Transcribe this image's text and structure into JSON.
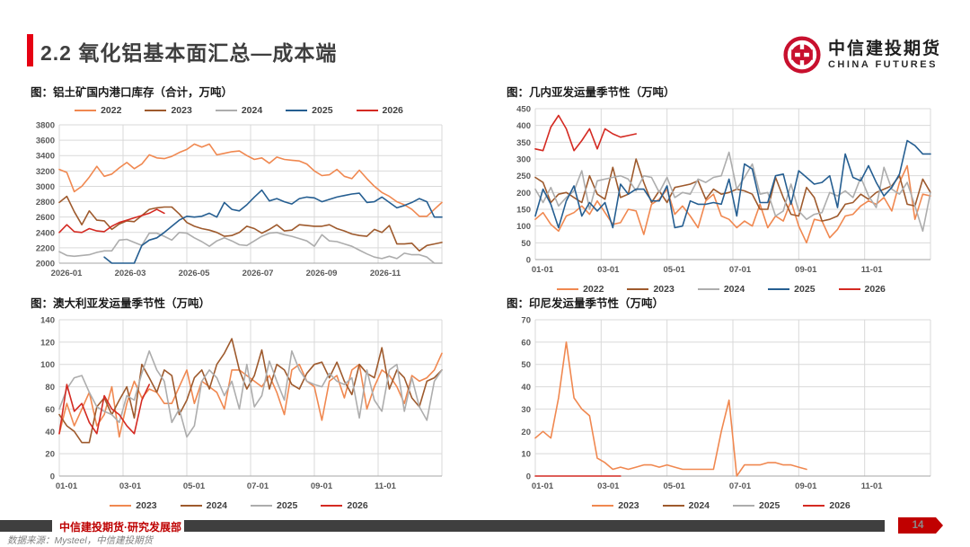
{
  "header": {
    "title": "2.2 氧化铝基本面汇总—成本端"
  },
  "logo": {
    "cn": "中信建投期货",
    "en": "CHINA FUTURES",
    "brand_color": "#C8102E",
    "mark_icon": "citic-coin-icon"
  },
  "footer": {
    "dept": "中信建投期货·研究发展部",
    "source": "数据来源：Mysteel，中信建投期货",
    "page": "14",
    "bar_color": "#3F3F3F",
    "badge_color": "#C00000"
  },
  "palette": {
    "orange": "#F08850",
    "brown": "#9E5A2D",
    "gray": "#ADADAD",
    "blue": "#255E91",
    "red": "#D42A22",
    "grid": "#D9D9D9",
    "axis": "#A6A6A6"
  },
  "chart_data": [
    {
      "type": "line",
      "title": "图：铝土矿国内港口库存（合计，万吨）",
      "ylim": [
        2000,
        3800
      ],
      "ystep": 200,
      "x_labels": [
        "2026-01",
        "2026-03",
        "2026-05",
        "2026-07",
        "2026-09",
        "2026-11"
      ],
      "legend_position": "top",
      "grid": true,
      "n_points": 52,
      "series": [
        {
          "name": "2022",
          "color": "#F08850",
          "values": [
            3220,
            3180,
            2930,
            3000,
            3120,
            3260,
            3130,
            3160,
            3240,
            3310,
            3230,
            3290,
            3410,
            3370,
            3360,
            3390,
            3440,
            3480,
            3550,
            3510,
            3550,
            3410,
            3430,
            3450,
            3460,
            3400,
            3350,
            3370,
            3300,
            3380,
            3350,
            3340,
            3330,
            3290,
            3200,
            3140,
            3150,
            3220,
            3130,
            3100,
            3210,
            3100,
            3000,
            2920,
            2870,
            2800,
            2760,
            2700,
            2610,
            2610,
            2700,
            2790
          ]
        },
        {
          "name": "2023",
          "color": "#9E5A2D",
          "values": [
            2790,
            2870,
            2670,
            2500,
            2680,
            2560,
            2550,
            2440,
            2510,
            2550,
            2540,
            2620,
            2700,
            2720,
            2730,
            2730,
            2640,
            2530,
            2480,
            2450,
            2430,
            2400,
            2350,
            2360,
            2400,
            2480,
            2450,
            2390,
            2440,
            2500,
            2420,
            2430,
            2500,
            2490,
            2480,
            2480,
            2500,
            2450,
            2420,
            2380,
            2360,
            2350,
            2440,
            2400,
            2490,
            2250,
            2250,
            2260,
            2160,
            2230,
            2250,
            2270
          ]
        },
        {
          "name": "2024",
          "color": "#ADADAD",
          "values": [
            2150,
            2100,
            2090,
            2100,
            2110,
            2140,
            2160,
            2160,
            2300,
            2310,
            2270,
            2230,
            2390,
            2390,
            2350,
            2300,
            2400,
            2390,
            2330,
            2280,
            2220,
            2290,
            2330,
            2290,
            2240,
            2230,
            2290,
            2350,
            2390,
            2400,
            2370,
            2350,
            2320,
            2290,
            2220,
            2370,
            2290,
            2280,
            2250,
            2220,
            2170,
            2120,
            2080,
            2060,
            2090,
            2060,
            2130,
            2110,
            2110,
            2080,
            2000,
            1980
          ]
        },
        {
          "name": "2025",
          "color": "#255E91",
          "values": [
            null,
            null,
            null,
            null,
            null,
            null,
            2080,
            2000,
            1950,
            1980,
            2000,
            2230,
            2300,
            2330,
            2400,
            2480,
            2560,
            2610,
            2600,
            2610,
            2650,
            2600,
            2790,
            2700,
            2680,
            2760,
            2860,
            2950,
            2810,
            2840,
            2800,
            2770,
            2840,
            2860,
            2850,
            2800,
            2830,
            2860,
            2880,
            2900,
            2910,
            2790,
            2800,
            2860,
            2790,
            2720,
            2750,
            2790,
            2840,
            2800,
            2600,
            2600
          ]
        },
        {
          "name": "2026",
          "color": "#D42A22",
          "values": [
            2400,
            2500,
            2410,
            2400,
            2450,
            2420,
            2410,
            2480,
            2530,
            2560,
            2590,
            2620,
            2650,
            2700,
            2650
          ]
        }
      ]
    },
    {
      "type": "line",
      "title": "图：几内亚发运量季节性（万吨）",
      "ylim": [
        0,
        450
      ],
      "ystep": 50,
      "x_labels": [
        "01-01",
        "03-01",
        "05-01",
        "07-01",
        "09-01",
        "11-01"
      ],
      "legend_position": "bottom",
      "grid": true,
      "n_points": 52,
      "series": [
        {
          "name": "2022",
          "color": "#F08850",
          "values": [
            120,
            140,
            105,
            85,
            130,
            140,
            160,
            135,
            175,
            140,
            105,
            110,
            150,
            145,
            75,
            165,
            180,
            210,
            135,
            160,
            130,
            95,
            175,
            195,
            130,
            120,
            95,
            115,
            100,
            165,
            95,
            130,
            115,
            175,
            100,
            50,
            120,
            115,
            65,
            90,
            130,
            135,
            160,
            175,
            165,
            185,
            145,
            230,
            280,
            120,
            195,
            190
          ]
        },
        {
          "name": "2023",
          "color": "#9E5A2D",
          "values": [
            245,
            230,
            170,
            195,
            200,
            185,
            170,
            250,
            195,
            180,
            275,
            185,
            195,
            300,
            230,
            170,
            205,
            170,
            215,
            220,
            225,
            235,
            180,
            210,
            195,
            200,
            210,
            205,
            195,
            150,
            150,
            245,
            185,
            135,
            130,
            215,
            185,
            115,
            120,
            130,
            165,
            170,
            195,
            180,
            200,
            210,
            220,
            250,
            165,
            160,
            240,
            200
          ]
        },
        {
          "name": "2024",
          "color": "#ADADAD",
          "values": [
            210,
            170,
            215,
            160,
            185,
            205,
            265,
            150,
            235,
            240,
            245,
            250,
            240,
            205,
            250,
            245,
            200,
            245,
            185,
            200,
            195,
            240,
            230,
            245,
            250,
            320,
            210,
            245,
            285,
            195,
            200,
            130,
            145,
            225,
            145,
            120,
            135,
            140,
            200,
            190,
            205,
            185,
            245,
            190,
            155,
            275,
            210,
            195,
            230,
            160,
            85,
            200
          ]
        },
        {
          "name": "2025",
          "color": "#255E91",
          "values": [
            130,
            210,
            165,
            95,
            175,
            220,
            130,
            170,
            145,
            170,
            95,
            225,
            195,
            210,
            210,
            175,
            175,
            220,
            95,
            100,
            175,
            165,
            165,
            170,
            165,
            240,
            130,
            285,
            270,
            170,
            170,
            250,
            255,
            165,
            265,
            245,
            225,
            230,
            250,
            155,
            315,
            245,
            235,
            280,
            230,
            190,
            215,
            255,
            355,
            340,
            315,
            315
          ]
        },
        {
          "name": "2026",
          "color": "#D42A22",
          "values": [
            330,
            325,
            395,
            430,
            390,
            325,
            355,
            390,
            330,
            390,
            375,
            365,
            370,
            375
          ]
        }
      ]
    },
    {
      "type": "line",
      "title": "图：澳大利亚发运量季节性（万吨）",
      "ylim": [
        0,
        140
      ],
      "ystep": 20,
      "x_labels": [
        "01-01",
        "03-01",
        "05-01",
        "07-01",
        "09-01",
        "11-01"
      ],
      "legend_position": "bottom",
      "grid": true,
      "n_points": 52,
      "series": [
        {
          "name": "2023",
          "color": "#F08850",
          "values": [
            38,
            65,
            45,
            60,
            75,
            45,
            55,
            80,
            35,
            65,
            85,
            70,
            78,
            75,
            65,
            65,
            80,
            95,
            65,
            85,
            80,
            75,
            60,
            95,
            95,
            90,
            85,
            80,
            90,
            75,
            55,
            95,
            100,
            85,
            80,
            50,
            85,
            90,
            70,
            95,
            100,
            60,
            80,
            95,
            90,
            80,
            65,
            90,
            85,
            88,
            95,
            110
          ]
        },
        {
          "name": "2024",
          "color": "#9E5A2D",
          "values": [
            55,
            45,
            40,
            30,
            30,
            62,
            70,
            55,
            68,
            80,
            52,
            100,
            88,
            75,
            95,
            90,
            55,
            68,
            88,
            95,
            78,
            100,
            110,
            123,
            95,
            78,
            90,
            113,
            78,
            100,
            95,
            82,
            78,
            92,
            100,
            102,
            88,
            102,
            85,
            73,
            100,
            92,
            88,
            115,
            78,
            95,
            88,
            70,
            62,
            85,
            88,
            95
          ]
        },
        {
          "name": "2025",
          "color": "#ADADAD",
          "values": [
            60,
            78,
            88,
            90,
            75,
            62,
            58,
            55,
            48,
            72,
            68,
            92,
            112,
            95,
            85,
            48,
            60,
            35,
            45,
            85,
            95,
            88,
            72,
            85,
            60,
            100,
            62,
            72,
            103,
            85,
            68,
            112,
            95,
            85,
            82,
            80,
            92,
            85,
            82,
            88,
            52,
            95,
            68,
            58,
            95,
            100,
            58,
            88,
            62,
            50,
            85,
            95
          ]
        },
        {
          "name": "2026",
          "color": "#D42A22",
          "values": [
            38,
            82,
            58,
            65,
            48,
            38,
            72,
            60,
            55,
            45,
            38,
            68,
            82
          ]
        }
      ]
    },
    {
      "type": "line",
      "title": "图：印尼发运量季节性（万吨）",
      "ylim": [
        0,
        70
      ],
      "ystep": 10,
      "x_labels": [
        "01-01",
        "03-01",
        "05-01",
        "07-01",
        "09-01",
        "11-01"
      ],
      "legend_position": "bottom",
      "grid": true,
      "n_points": 52,
      "series": [
        {
          "name": "2023",
          "color": "#F08850",
          "values": [
            17,
            20,
            17,
            35,
            60,
            35,
            30,
            27,
            8,
            6,
            3,
            4,
            3,
            4,
            5,
            5,
            4,
            5,
            4,
            3,
            3,
            3,
            3,
            3,
            20,
            34,
            0,
            5,
            5,
            5,
            6,
            6,
            5,
            5,
            4,
            3
          ]
        },
        {
          "name": "2024",
          "color": "#9E5A2D",
          "values": []
        },
        {
          "name": "2025",
          "color": "#ADADAD",
          "values": []
        },
        {
          "name": "2026",
          "color": "#D42A22",
          "values": [
            0,
            0,
            0,
            0,
            0,
            0,
            0,
            0,
            0,
            0,
            0,
            0
          ]
        }
      ]
    }
  ]
}
